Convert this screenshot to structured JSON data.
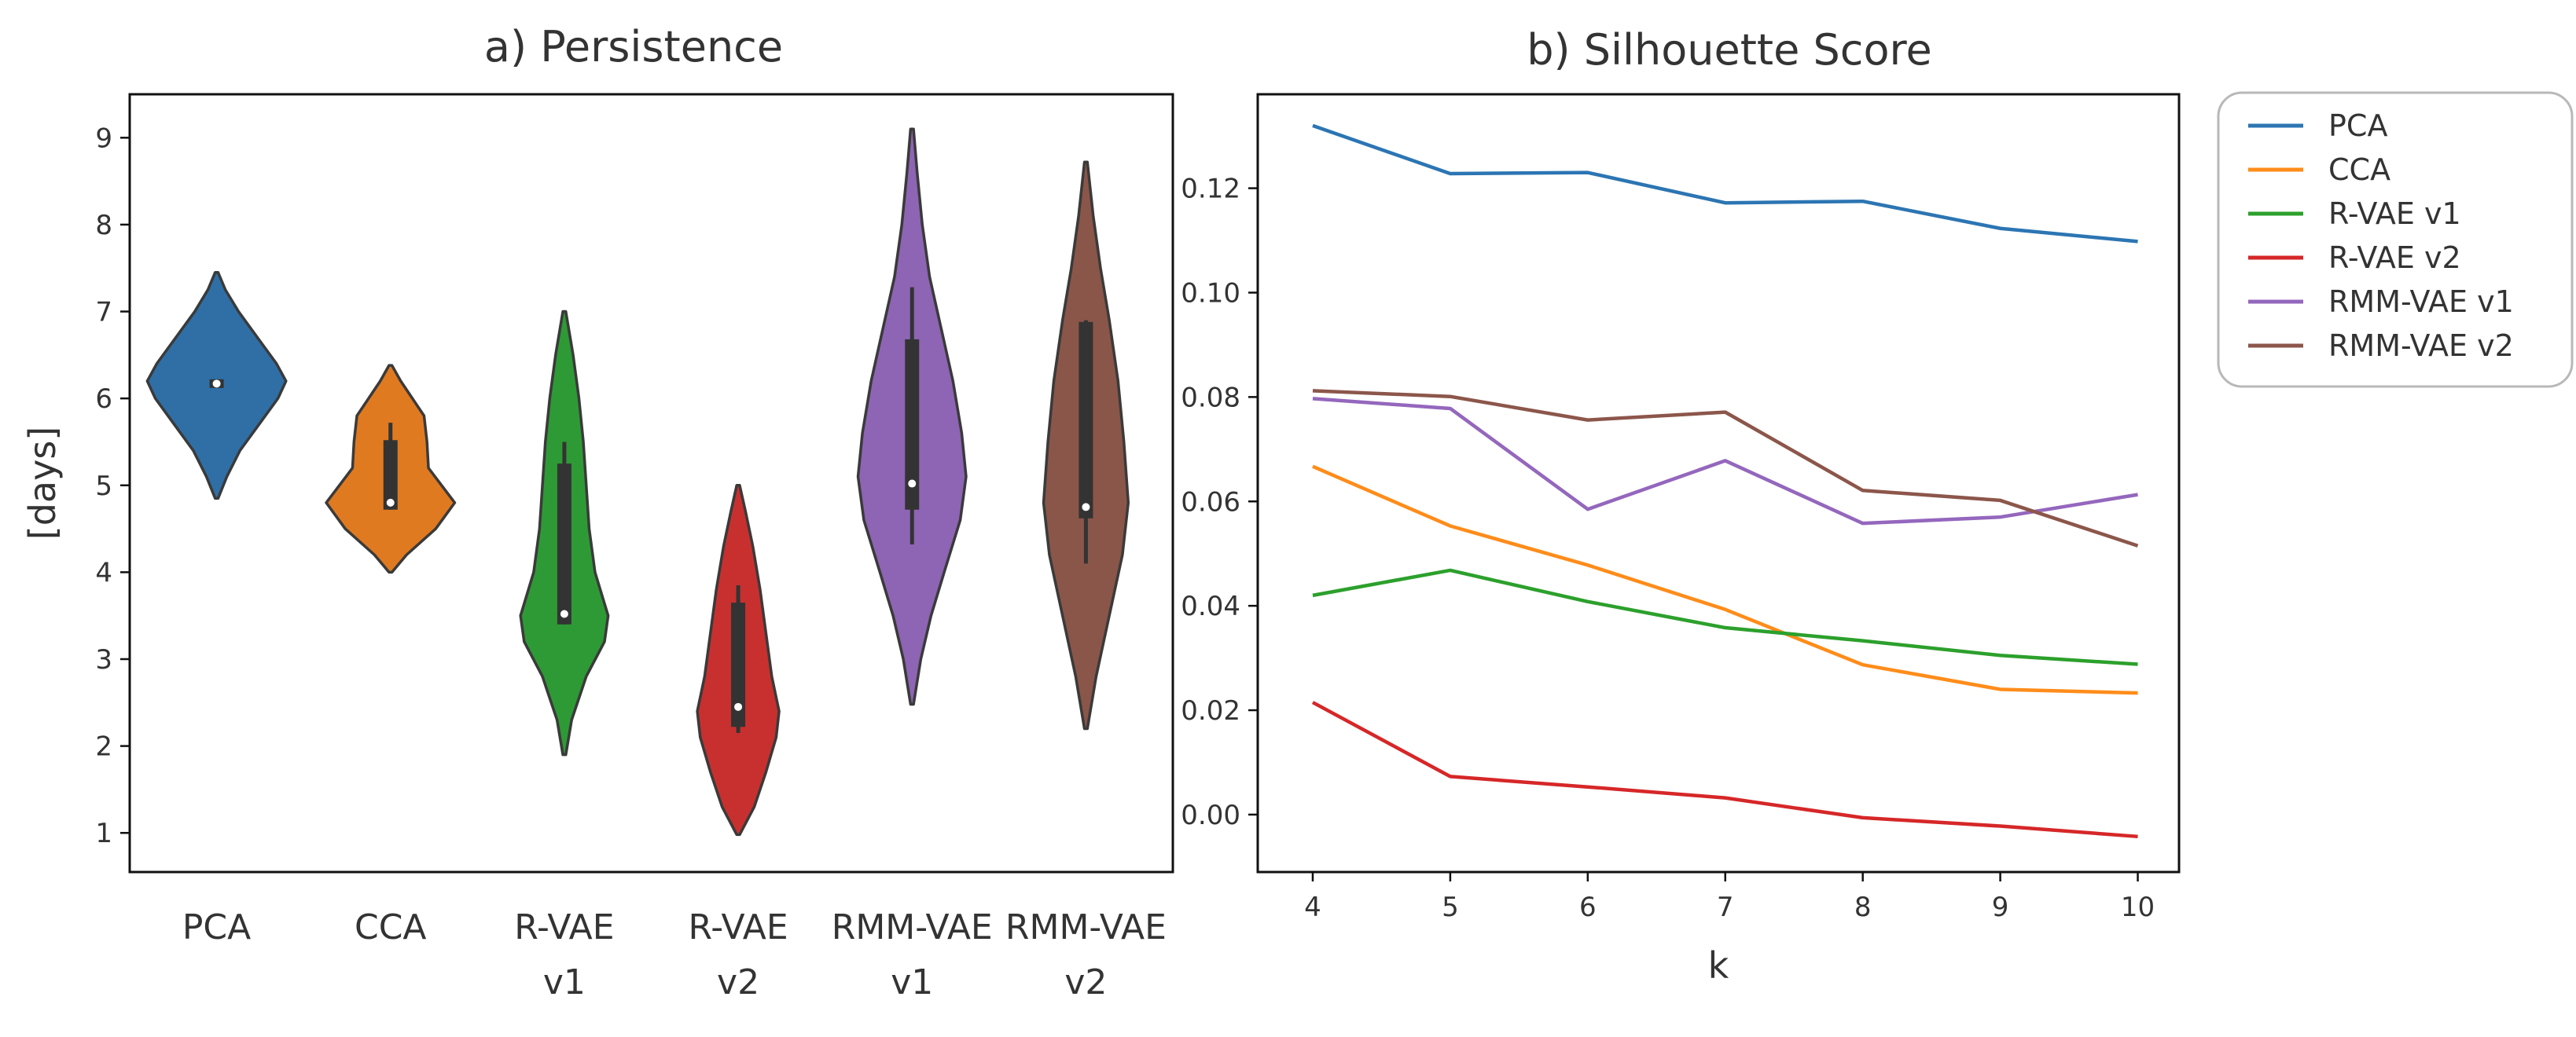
{
  "panel_titles": [
    "a) Persistence",
    "b) Silhouette Score"
  ],
  "chart_data": [
    {
      "type": "violin",
      "title": "a) Persistence",
      "xlabel": "",
      "ylabel": "[days]",
      "ylim": [
        0.55,
        9.5
      ],
      "yticks": [
        1,
        2,
        3,
        4,
        5,
        6,
        7,
        8,
        9
      ],
      "categories": [
        {
          "name": "PCA",
          "lines": [
            "PCA"
          ],
          "color": "#2f6fa6",
          "min": 4.85,
          "max": 7.45,
          "q1": 6.12,
          "q3": 6.22,
          "median": 6.17,
          "whisker_low": 6.12,
          "whisker_high": 6.22,
          "density": [
            [
              4.85,
              0.02
            ],
            [
              5.1,
              0.14
            ],
            [
              5.4,
              0.32
            ],
            [
              5.7,
              0.58
            ],
            [
              6.0,
              0.84
            ],
            [
              6.2,
              0.95
            ],
            [
              6.4,
              0.82
            ],
            [
              6.7,
              0.56
            ],
            [
              7.0,
              0.3
            ],
            [
              7.25,
              0.12
            ],
            [
              7.45,
              0.02
            ]
          ]
        },
        {
          "name": "CCA",
          "lines": [
            "CCA"
          ],
          "color": "#e07a20",
          "min": 4.0,
          "max": 6.38,
          "q1": 4.72,
          "q3": 5.52,
          "median": 4.8,
          "whisker_low": 4.72,
          "whisker_high": 5.72,
          "density": [
            [
              4.0,
              0.02
            ],
            [
              4.2,
              0.22
            ],
            [
              4.5,
              0.62
            ],
            [
              4.8,
              0.88
            ],
            [
              5.0,
              0.7
            ],
            [
              5.2,
              0.52
            ],
            [
              5.5,
              0.5
            ],
            [
              5.8,
              0.46
            ],
            [
              6.0,
              0.3
            ],
            [
              6.2,
              0.14
            ],
            [
              6.38,
              0.02
            ]
          ]
        },
        {
          "name": "R-VAE v1",
          "lines": [
            "R-VAE",
            "v1"
          ],
          "color": "#2e9a35",
          "min": 1.9,
          "max": 7.0,
          "q1": 3.4,
          "q3": 5.25,
          "median": 3.52,
          "whisker_low": 3.4,
          "whisker_high": 5.5,
          "density": [
            [
              1.9,
              0.02
            ],
            [
              2.3,
              0.1
            ],
            [
              2.8,
              0.3
            ],
            [
              3.2,
              0.55
            ],
            [
              3.5,
              0.6
            ],
            [
              4.0,
              0.42
            ],
            [
              4.5,
              0.34
            ],
            [
              5.0,
              0.3
            ],
            [
              5.5,
              0.26
            ],
            [
              6.0,
              0.2
            ],
            [
              6.5,
              0.12
            ],
            [
              7.0,
              0.02
            ]
          ]
        },
        {
          "name": "R-VAE v2",
          "lines": [
            "R-VAE",
            "v2"
          ],
          "color": "#c8302f",
          "min": 0.98,
          "max": 5.0,
          "q1": 2.22,
          "q3": 3.65,
          "median": 2.45,
          "whisker_low": 2.15,
          "whisker_high": 3.85,
          "density": [
            [
              0.98,
              0.02
            ],
            [
              1.3,
              0.22
            ],
            [
              1.7,
              0.38
            ],
            [
              2.1,
              0.52
            ],
            [
              2.4,
              0.56
            ],
            [
              2.8,
              0.46
            ],
            [
              3.3,
              0.38
            ],
            [
              3.8,
              0.3
            ],
            [
              4.3,
              0.2
            ],
            [
              4.7,
              0.1
            ],
            [
              5.0,
              0.02
            ]
          ]
        },
        {
          "name": "RMM-VAE v1",
          "lines": [
            "RMM-VAE",
            "v1"
          ],
          "color": "#8e64b4",
          "min": 2.48,
          "max": 9.1,
          "q1": 4.72,
          "q3": 6.68,
          "median": 5.02,
          "whisker_low": 4.32,
          "whisker_high": 7.28,
          "density": [
            [
              2.48,
              0.02
            ],
            [
              3.0,
              0.12
            ],
            [
              3.5,
              0.26
            ],
            [
              4.0,
              0.44
            ],
            [
              4.6,
              0.66
            ],
            [
              5.1,
              0.74
            ],
            [
              5.6,
              0.68
            ],
            [
              6.2,
              0.56
            ],
            [
              6.8,
              0.4
            ],
            [
              7.4,
              0.24
            ],
            [
              8.0,
              0.14
            ],
            [
              8.6,
              0.07
            ],
            [
              9.1,
              0.02
            ]
          ]
        },
        {
          "name": "RMM-VAE v2",
          "lines": [
            "RMM-VAE",
            "v2"
          ],
          "color": "#8a5649",
          "min": 2.2,
          "max": 8.72,
          "q1": 4.62,
          "q3": 6.88,
          "median": 4.75,
          "whisker_low": 4.1,
          "whisker_high": 6.9,
          "density": [
            [
              2.2,
              0.02
            ],
            [
              2.8,
              0.14
            ],
            [
              3.5,
              0.32
            ],
            [
              4.2,
              0.5
            ],
            [
              4.8,
              0.58
            ],
            [
              5.5,
              0.52
            ],
            [
              6.2,
              0.44
            ],
            [
              6.9,
              0.32
            ],
            [
              7.5,
              0.2
            ],
            [
              8.1,
              0.1
            ],
            [
              8.72,
              0.02
            ]
          ]
        }
      ]
    },
    {
      "type": "line",
      "title": "b) Silhouette Score",
      "xlabel": "k",
      "ylabel": "",
      "x": [
        4,
        5,
        6,
        7,
        8,
        9,
        10
      ],
      "xlim": [
        3.6,
        10.3
      ],
      "ylim": [
        -0.011,
        0.138
      ],
      "yticks": [
        0.0,
        0.02,
        0.04,
        0.06,
        0.08,
        0.1,
        0.12
      ],
      "ytick_labels": [
        "0.00",
        "0.02",
        "0.04",
        "0.06",
        "0.08",
        "0.10",
        "0.12"
      ],
      "xticks": [
        4,
        5,
        6,
        7,
        8,
        9,
        10
      ],
      "xtick_labels": [
        "4",
        "5",
        "6",
        "7",
        "8",
        "9",
        "10"
      ],
      "legend_position": "outside right, top",
      "series": [
        {
          "name": "PCA",
          "color": "#2c75b3",
          "values": [
            0.132,
            0.1228,
            0.123,
            0.1172,
            0.1175,
            0.1123,
            0.1098
          ]
        },
        {
          "name": "CCA",
          "color": "#ff8c1a",
          "values": [
            0.0667,
            0.0553,
            0.0478,
            0.0393,
            0.0287,
            0.024,
            0.0233
          ]
        },
        {
          "name": "R-VAE v1",
          "color": "#2ca02c",
          "values": [
            0.042,
            0.0468,
            0.0408,
            0.0358,
            0.0333,
            0.0305,
            0.0288
          ]
        },
        {
          "name": "R-VAE v2",
          "color": "#d62728",
          "values": [
            0.0215,
            0.0073,
            0.0053,
            0.0032,
            -0.0006,
            -0.0022,
            -0.0042
          ]
        },
        {
          "name": "RMM-VAE v1",
          "color": "#9467bd",
          "values": [
            0.0797,
            0.0778,
            0.0585,
            0.0678,
            0.0558,
            0.057,
            0.0613
          ]
        },
        {
          "name": "RMM-VAE v2",
          "color": "#8c564b",
          "values": [
            0.0812,
            0.0801,
            0.0756,
            0.0771,
            0.0621,
            0.0602,
            0.0515
          ]
        }
      ]
    }
  ]
}
